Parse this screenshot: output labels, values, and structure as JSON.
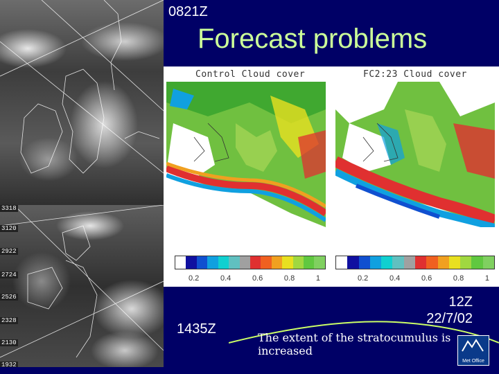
{
  "header": {
    "time_top": "0821Z",
    "title": "Forecast problems"
  },
  "satellite": {
    "latitude_labels": [
      "3318",
      "3120",
      "2922",
      "2724",
      "2526",
      "2328",
      "2130",
      "1932"
    ]
  },
  "panels": {
    "left": {
      "label": "Control Cloud cover"
    },
    "right": {
      "label": "FC2:23 Cloud cover"
    }
  },
  "scale": {
    "ticks": [
      "0.2",
      "0.4",
      "0.6",
      "0.8",
      "1"
    ],
    "colors": [
      "#ffffff",
      "#1010a0",
      "#1050d0",
      "#10a0e0",
      "#10d0d0",
      "#60c0c0",
      "#a0a0a0",
      "#e03030",
      "#f06020",
      "#f0a020",
      "#e8e020",
      "#a0d840",
      "#60c840",
      "#80d060"
    ]
  },
  "footer": {
    "time_bottom": "1435Z",
    "date_line1": "12Z",
    "date_line2": "22/7/02",
    "caption": "The extent of the stratocumulus is increased",
    "logo_text": "Met Office"
  }
}
